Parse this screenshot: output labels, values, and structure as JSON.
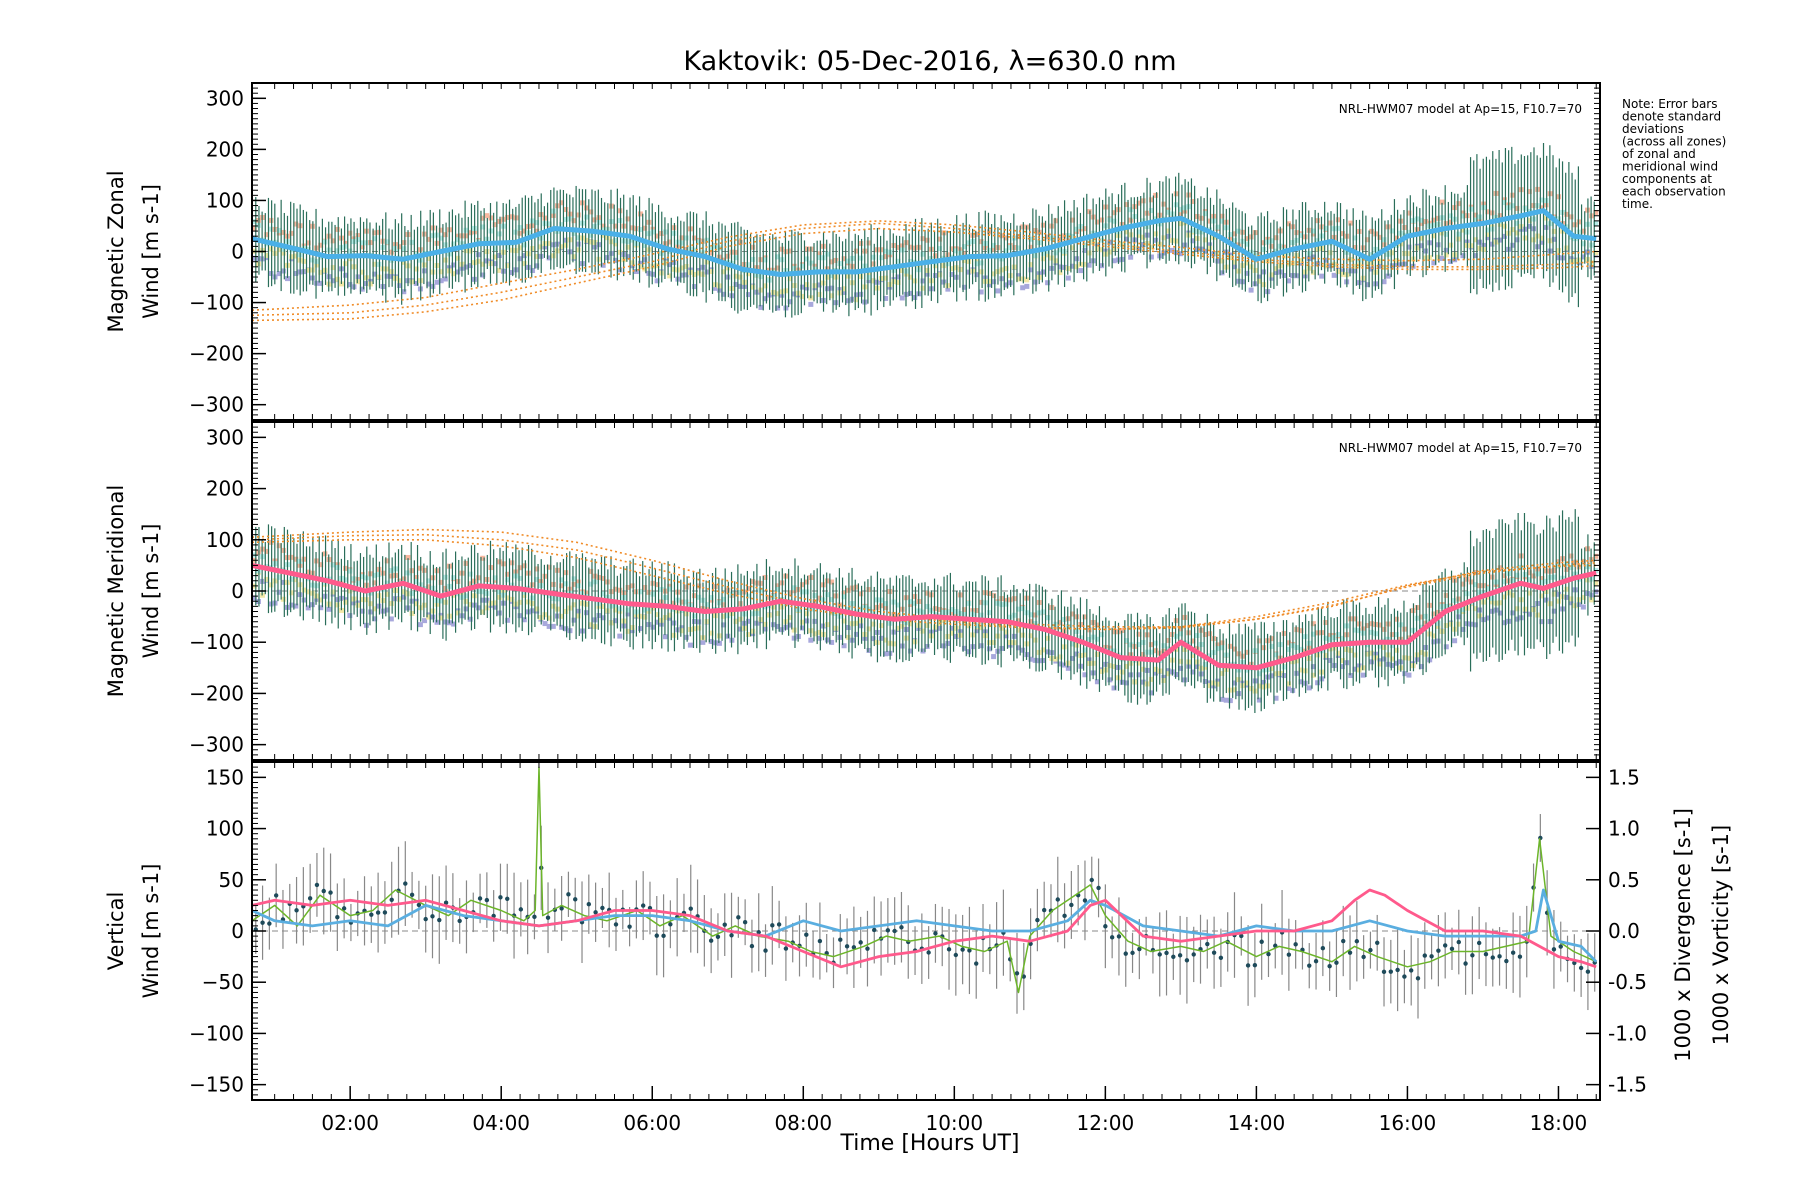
{
  "title": "Kaktovik: 05-Dec-2016, λ=630.0 nm",
  "note_lines": [
    "Note: Error bars",
    "denote standard",
    "deviations",
    "(across all zones)",
    "of zonal and",
    "meridional wind",
    "components at",
    "each observation",
    "time."
  ],
  "colors": {
    "zonal_mean": "#4ab0e8",
    "zonal_dark": "#1f3fd8",
    "meridional_mean": "#ff5a8c",
    "vertical": "#6cb52a",
    "divergence": "#5aaee0",
    "vorticity": "#ff5a8c",
    "model": "#f08c28",
    "errorbar": "#2a6e5a",
    "scatter_purple": "#a8a8dc",
    "scatter_peach": "#f8b8a0",
    "scatter_yellow": "#f4e8a8",
    "scatter_cyan": "#b8ece8"
  },
  "chart_data": [
    {
      "type": "line",
      "panel": "zonal",
      "ylabel_line1": "Magnetic Zonal",
      "ylabel_line2": "Wind [m s",
      "ylabel_exp": "-1",
      "ylabel_close": "]",
      "ylim": [
        -330,
        330
      ],
      "yticks": [
        -300,
        -200,
        -100,
        0,
        100,
        200,
        300
      ],
      "model_label": "NRL-HWM07 model at Ap=15, F10.7=70",
      "series": [
        {
          "values_x": [
            0.7,
            1.2,
            1.7,
            2.2,
            2.7,
            3.2,
            3.7,
            4.2,
            4.7,
            5.2,
            5.7,
            6.2,
            6.7,
            7.2,
            7.7,
            8.2,
            8.7,
            9.2,
            9.7,
            10.2,
            10.7,
            11.2,
            11.7,
            12.2,
            12.7,
            13.0,
            13.5,
            14.0,
            14.5,
            15.0,
            15.5,
            16.0,
            16.5,
            17.0,
            17.5,
            17.8,
            18.2,
            18.5
          ],
          "values_y": [
            25,
            8,
            -10,
            -8,
            -15,
            0,
            15,
            18,
            45,
            40,
            30,
            5,
            -10,
            -35,
            -45,
            -40,
            -40,
            -30,
            -20,
            -10,
            -8,
            5,
            25,
            45,
            60,
            65,
            30,
            -15,
            5,
            20,
            -15,
            30,
            45,
            55,
            70,
            80,
            30,
            25
          ]
        }
      ],
      "model_curves": [
        {
          "x": [
            0.7,
            2,
            3,
            4,
            5,
            6,
            7,
            8,
            9,
            10,
            11,
            12,
            13,
            14,
            15,
            16,
            17,
            18,
            18.5
          ],
          "y": [
            -125,
            -120,
            -105,
            -80,
            -50,
            -20,
            20,
            45,
            55,
            45,
            30,
            15,
            0,
            -15,
            -25,
            -30,
            -30,
            -25,
            -20
          ]
        },
        {
          "x": [
            0.7,
            2,
            3,
            4,
            5,
            6,
            7,
            8,
            9,
            10,
            11,
            12,
            13,
            14,
            15,
            16,
            17,
            18,
            18.5
          ],
          "y": [
            -135,
            -132,
            -118,
            -95,
            -62,
            -30,
            10,
            35,
            45,
            38,
            25,
            10,
            -5,
            -20,
            -30,
            -35,
            -35,
            -32,
            -28
          ]
        },
        {
          "x": [
            0.7,
            2,
            3,
            4,
            5,
            6,
            7,
            8,
            9,
            10,
            11,
            12,
            13,
            14,
            15,
            16,
            17,
            18,
            18.5
          ],
          "y": [
            -115,
            -105,
            -90,
            -62,
            -35,
            -5,
            28,
            52,
            60,
            52,
            38,
            22,
            8,
            -8,
            -15,
            -18,
            -15,
            -5,
            0
          ]
        }
      ]
    },
    {
      "type": "line",
      "panel": "meridional",
      "ylabel_line1": "Magnetic Meridional",
      "ylabel_line2": "Wind [m s",
      "ylabel_exp": "-1",
      "ylabel_close": "]",
      "ylim": [
        -330,
        330
      ],
      "yticks": [
        -300,
        -200,
        -100,
        0,
        100,
        200,
        300
      ],
      "model_label": "NRL-HWM07 model at Ap=15, F10.7=70",
      "series": [
        {
          "values_x": [
            0.7,
            1.2,
            1.7,
            2.2,
            2.7,
            3.2,
            3.7,
            4.2,
            4.7,
            5.2,
            5.7,
            6.2,
            6.7,
            7.2,
            7.7,
            8.2,
            8.7,
            9.2,
            9.7,
            10.2,
            10.7,
            11.2,
            11.7,
            12.2,
            12.7,
            13.0,
            13.5,
            14.0,
            14.5,
            15.0,
            15.5,
            16.0,
            16.5,
            17.0,
            17.5,
            17.8,
            18.2,
            18.5
          ],
          "values_y": [
            50,
            35,
            20,
            0,
            15,
            -10,
            10,
            5,
            -5,
            -15,
            -25,
            -30,
            -40,
            -35,
            -20,
            -30,
            -45,
            -55,
            -50,
            -55,
            -60,
            -75,
            -100,
            -130,
            -135,
            -100,
            -145,
            -150,
            -130,
            -105,
            -100,
            -100,
            -40,
            -10,
            15,
            5,
            25,
            35
          ]
        }
      ],
      "model_curves": [
        {
          "x": [
            0.7,
            2,
            3,
            4,
            5,
            6,
            7,
            8,
            9,
            10,
            11,
            12,
            13,
            14,
            15,
            16,
            17,
            18,
            18.5
          ],
          "y": [
            105,
            115,
            120,
            115,
            95,
            60,
            20,
            -15,
            -40,
            -55,
            -65,
            -70,
            -70,
            -55,
            -30,
            10,
            40,
            55,
            60
          ]
        },
        {
          "x": [
            0.7,
            2,
            3,
            4,
            5,
            6,
            7,
            8,
            9,
            10,
            11,
            12,
            13,
            14,
            15,
            16,
            17,
            18,
            18.5
          ],
          "y": [
            100,
            108,
            110,
            100,
            80,
            45,
            8,
            -25,
            -48,
            -60,
            -70,
            -75,
            -72,
            -55,
            -28,
            8,
            35,
            50,
            55
          ]
        },
        {
          "x": [
            0.7,
            2,
            3,
            4,
            5,
            6,
            7,
            8,
            9,
            10,
            11,
            12,
            13,
            14,
            15,
            16,
            17,
            18,
            18.5
          ],
          "y": [
            95,
            100,
            100,
            88,
            65,
            30,
            -5,
            -35,
            -55,
            -65,
            -72,
            -75,
            -70,
            -50,
            -22,
            12,
            38,
            48,
            50
          ]
        }
      ]
    },
    {
      "type": "line",
      "panel": "vertical",
      "ylabel_line1": "Vertical",
      "ylabel_line2": "Wind [m s",
      "ylabel_exp": "-1",
      "ylabel_close": "]",
      "ylim": [
        -165,
        165
      ],
      "yticks": [
        -150,
        -100,
        -50,
        0,
        50,
        100,
        150
      ],
      "right_ylim": [
        -1.65,
        1.65
      ],
      "right_yticks": [
        "-1.5",
        "-1.0",
        "-0.5",
        "0.0",
        "0.5",
        "1.0",
        "1.5"
      ],
      "right_label_div": "1000 x Divergence [s",
      "right_label_vort": "1000 x Vorticity [s",
      "right_label_exp": "-1",
      "right_label_close": "]",
      "xlabel": "Time [Hours UT]",
      "xlim": [
        0.7,
        18.55
      ],
      "xticks": [
        "02:00",
        "04:00",
        "06:00",
        "08:00",
        "10:00",
        "12:00",
        "14:00",
        "16:00",
        "18:00"
      ],
      "xtick_values": [
        2,
        4,
        6,
        8,
        10,
        12,
        14,
        16,
        18
      ],
      "series": [
        {
          "name": "Vertical",
          "values_x": [
            0.7,
            1.0,
            1.3,
            1.6,
            2.0,
            2.3,
            2.6,
            3.0,
            3.3,
            3.6,
            4.0,
            4.3,
            4.45,
            4.5,
            4.55,
            4.8,
            5.1,
            5.4,
            5.8,
            6.1,
            6.4,
            6.8,
            7.1,
            7.4,
            7.8,
            8.1,
            8.4,
            8.8,
            9.1,
            9.4,
            9.8,
            10.1,
            10.4,
            10.7,
            10.85,
            11.0,
            11.3,
            11.6,
            11.8,
            12.0,
            12.3,
            12.6,
            13.0,
            13.3,
            13.6,
            14.0,
            14.3,
            14.6,
            15.0,
            15.3,
            15.6,
            16.0,
            16.3,
            16.6,
            17.0,
            17.3,
            17.6,
            17.75,
            17.9,
            18.2,
            18.5
          ],
          "values_y": [
            10,
            25,
            5,
            35,
            15,
            20,
            40,
            25,
            15,
            30,
            20,
            10,
            20,
            160,
            15,
            25,
            15,
            10,
            20,
            5,
            15,
            -5,
            5,
            -5,
            -10,
            -20,
            -25,
            -15,
            -5,
            -10,
            -5,
            -15,
            -20,
            -10,
            -60,
            -5,
            20,
            35,
            45,
            15,
            -10,
            -20,
            -15,
            -20,
            -10,
            -25,
            -15,
            -20,
            -30,
            -15,
            -25,
            -35,
            -30,
            -20,
            -20,
            -15,
            -10,
            90,
            -5,
            -20,
            -30
          ]
        },
        {
          "name": "Divergence",
          "values_x": [
            0.7,
            1.0,
            1.5,
            2.0,
            2.5,
            3.0,
            3.5,
            4.0,
            4.5,
            5.0,
            5.5,
            6.0,
            6.5,
            7.0,
            7.5,
            8.0,
            8.5,
            9.0,
            9.5,
            10.0,
            10.5,
            11.0,
            11.5,
            11.8,
            12.0,
            12.5,
            13.0,
            13.5,
            14.0,
            14.5,
            15.0,
            15.5,
            16.0,
            16.5,
            17.0,
            17.5,
            17.7,
            17.8,
            18.0,
            18.3,
            18.5
          ],
          "values_y": [
            0.2,
            0.1,
            0.05,
            0.1,
            0.05,
            0.25,
            0.15,
            0.1,
            0.05,
            0.1,
            0.15,
            0.15,
            0.1,
            0.0,
            -0.05,
            0.1,
            0.0,
            0.05,
            0.1,
            0.05,
            0.0,
            0.0,
            0.1,
            0.3,
            0.25,
            0.05,
            0.0,
            -0.05,
            0.05,
            0.0,
            0.0,
            0.1,
            0.0,
            -0.05,
            -0.05,
            -0.05,
            0.0,
            0.4,
            -0.1,
            -0.15,
            -0.3
          ]
        },
        {
          "name": "Vorticity",
          "values_x": [
            0.7,
            1.0,
            1.5,
            2.0,
            2.5,
            3.0,
            3.5,
            4.0,
            4.5,
            5.0,
            5.5,
            6.0,
            6.5,
            7.0,
            7.5,
            8.0,
            8.5,
            9.0,
            9.5,
            10.0,
            10.5,
            11.0,
            11.5,
            11.8,
            12.0,
            12.5,
            13.0,
            13.5,
            14.0,
            14.5,
            15.0,
            15.3,
            15.5,
            15.7,
            16.0,
            16.5,
            17.0,
            17.5,
            18.0,
            18.3,
            18.5
          ],
          "values_y": [
            0.25,
            0.3,
            0.25,
            0.3,
            0.25,
            0.3,
            0.2,
            0.1,
            0.05,
            0.1,
            0.2,
            0.2,
            0.15,
            0.0,
            -0.05,
            -0.2,
            -0.35,
            -0.25,
            -0.2,
            -0.1,
            -0.05,
            -0.1,
            0.0,
            0.25,
            0.3,
            -0.05,
            -0.1,
            -0.05,
            0.0,
            0.0,
            0.1,
            0.3,
            0.4,
            0.35,
            0.2,
            0.0,
            0.0,
            -0.05,
            -0.25,
            -0.3,
            -0.35
          ]
        }
      ]
    }
  ]
}
